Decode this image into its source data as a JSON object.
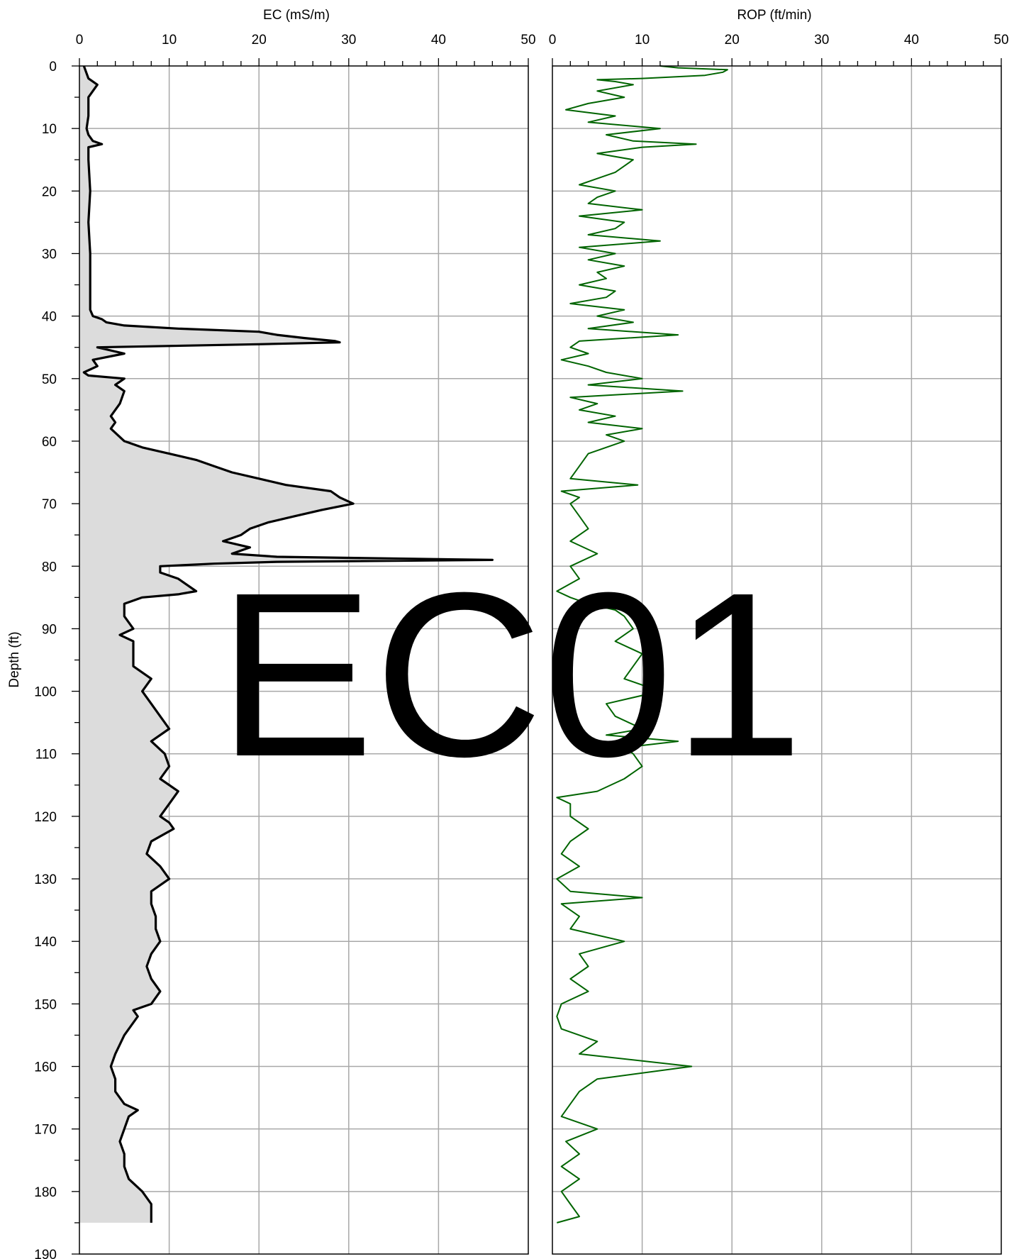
{
  "watermark": "EC01",
  "colors": {
    "ec_line": "#000000",
    "ec_fill": "#dcdcdc",
    "rop_line": "#006400",
    "grid": "#a8a8a8",
    "watermark": "#dcdcdc"
  },
  "chart_data": [
    {
      "type": "line",
      "title": "",
      "xlabel": "EC (mS/m)",
      "ylabel": "Depth (ft)",
      "xlim": [
        0,
        50
      ],
      "ylim": [
        190,
        0
      ],
      "y_inverted": true,
      "x_ticks": [
        "0",
        "10",
        "20",
        "30",
        "40",
        "50"
      ],
      "y_ticks": [
        "0",
        "10",
        "20",
        "30",
        "40",
        "50",
        "60",
        "70",
        "80",
        "90",
        "100",
        "110",
        "120",
        "130",
        "140",
        "150",
        "160",
        "170",
        "180",
        "190"
      ],
      "grid": true,
      "filled_to_axis": true,
      "series": [
        {
          "name": "",
          "depth": [
            0,
            2,
            3,
            5,
            8,
            10,
            11,
            12,
            12.5,
            13,
            15,
            20,
            25,
            30,
            35,
            39,
            40,
            40.5,
            41,
            41.5,
            42,
            42.5,
            43,
            43.5,
            44,
            44.2,
            44.5,
            45,
            46,
            47,
            48,
            49,
            49.5,
            50,
            51,
            52,
            54,
            56,
            57,
            58,
            60,
            61,
            62,
            63,
            64,
            65,
            66,
            67,
            68,
            69,
            70,
            71,
            72,
            73,
            74,
            75,
            76,
            77,
            78,
            78.5,
            79,
            79.3,
            79.6,
            80,
            81,
            82,
            83,
            84,
            84.5,
            85,
            86,
            88,
            90,
            91,
            92,
            94,
            96,
            98,
            100,
            102,
            104,
            106,
            108,
            110,
            112,
            114,
            116,
            118,
            120,
            121,
            122,
            124,
            126,
            128,
            130,
            132,
            134,
            136,
            138,
            140,
            142,
            144,
            146,
            148,
            150,
            151,
            152,
            155,
            158,
            160,
            162,
            164,
            166,
            167,
            168,
            170,
            172,
            174,
            176,
            178,
            180,
            182,
            184,
            185
          ],
          "values": [
            0.5,
            1,
            2,
            1,
            1,
            0.8,
            1,
            1.5,
            2.5,
            1,
            1,
            1.2,
            1,
            1.2,
            1.2,
            1.2,
            1.5,
            2.5,
            3,
            5,
            11,
            20,
            22,
            25,
            28.5,
            29,
            20,
            2,
            5,
            1.5,
            2,
            0.5,
            1,
            5,
            4,
            5,
            4.5,
            3.5,
            4,
            3.5,
            5,
            7,
            10,
            13,
            15,
            17,
            20,
            23,
            28,
            29,
            30.5,
            27,
            24,
            21,
            19,
            18,
            16,
            19,
            17,
            22,
            46,
            22,
            15,
            9,
            9,
            11,
            12,
            13,
            11,
            7,
            5,
            5,
            6,
            4.5,
            6,
            6,
            6,
            8,
            7,
            8,
            9,
            10,
            8,
            9.5,
            10,
            9,
            11,
            10,
            9,
            10,
            10.5,
            8,
            7.5,
            9,
            10,
            8,
            8,
            8.5,
            8.5,
            9,
            8,
            7.5,
            8,
            9,
            8,
            6,
            6.5,
            5,
            4,
            3.5,
            4,
            4,
            5,
            6.5,
            5.5,
            5,
            4.5,
            5,
            5,
            5.5,
            7,
            8,
            8,
            8
          ]
        }
      ]
    },
    {
      "type": "line",
      "title": "",
      "xlabel": "ROP (ft/min)",
      "ylabel": "",
      "xlim": [
        0,
        50
      ],
      "ylim": [
        190,
        0
      ],
      "y_inverted": true,
      "x_ticks": [
        "0",
        "10",
        "20",
        "30",
        "40",
        "50"
      ],
      "grid": true,
      "series": [
        {
          "name": "",
          "depth": [
            0,
            0.3,
            0.6,
            1,
            1.5,
            2,
            2.2,
            2.5,
            3,
            4,
            5,
            6,
            7,
            8,
            9,
            10,
            11,
            12,
            12.5,
            13,
            14,
            15,
            16,
            17,
            18,
            19,
            20,
            21,
            22,
            23,
            24,
            25,
            26,
            27,
            28,
            29,
            30,
            31,
            32,
            33,
            34,
            35,
            36,
            37,
            38,
            39,
            40,
            41,
            42,
            43,
            44,
            45,
            46,
            47,
            48,
            49,
            50,
            51,
            52,
            53,
            54,
            55,
            56,
            57,
            58,
            59,
            60,
            62,
            64,
            66,
            67,
            68,
            69,
            70,
            72,
            74,
            76,
            78,
            80,
            82,
            84,
            85,
            86,
            87,
            88,
            90,
            92,
            94,
            96,
            98,
            100,
            102,
            104,
            106,
            107,
            108,
            109,
            110,
            112,
            114,
            116,
            117,
            118,
            120,
            122,
            124,
            126,
            128,
            130,
            132,
            133,
            134,
            136,
            138,
            140,
            142,
            144,
            146,
            148,
            150,
            152,
            154,
            156,
            158,
            160,
            162,
            164,
            166,
            168,
            170,
            172,
            174,
            176,
            178,
            180,
            182,
            184,
            185
          ],
          "values": [
            12,
            14,
            19.5,
            19,
            17,
            10,
            5,
            7,
            9,
            5,
            8,
            4,
            1.5,
            7,
            4,
            12,
            6,
            9,
            16,
            10,
            5,
            9,
            8,
            7,
            5,
            3,
            7,
            5,
            4,
            10,
            3,
            8,
            7,
            4,
            12,
            3,
            7,
            4,
            8,
            5,
            6,
            3,
            7,
            6,
            2,
            8,
            5,
            9,
            4,
            14,
            3,
            2,
            4,
            1,
            4,
            6,
            10,
            4,
            14.5,
            2,
            5,
            3,
            7,
            4,
            10,
            6,
            8,
            4,
            3,
            2,
            9.5,
            1,
            3,
            2,
            3,
            4,
            2,
            5,
            2,
            3,
            0.5,
            2,
            4,
            7,
            8,
            9,
            7,
            10,
            9,
            8,
            12,
            6,
            7,
            10,
            6,
            14,
            8,
            9,
            10,
            8,
            5,
            0.5,
            2,
            2,
            4,
            2,
            1,
            3,
            0.5,
            2,
            10,
            1,
            3,
            2,
            8,
            3,
            4,
            2,
            4,
            1,
            0.5,
            1,
            5,
            3,
            15.5,
            5,
            3,
            2,
            1,
            5,
            1.5,
            3,
            1,
            3,
            1,
            2,
            3,
            0.5,
            1
          ]
        }
      ]
    }
  ]
}
